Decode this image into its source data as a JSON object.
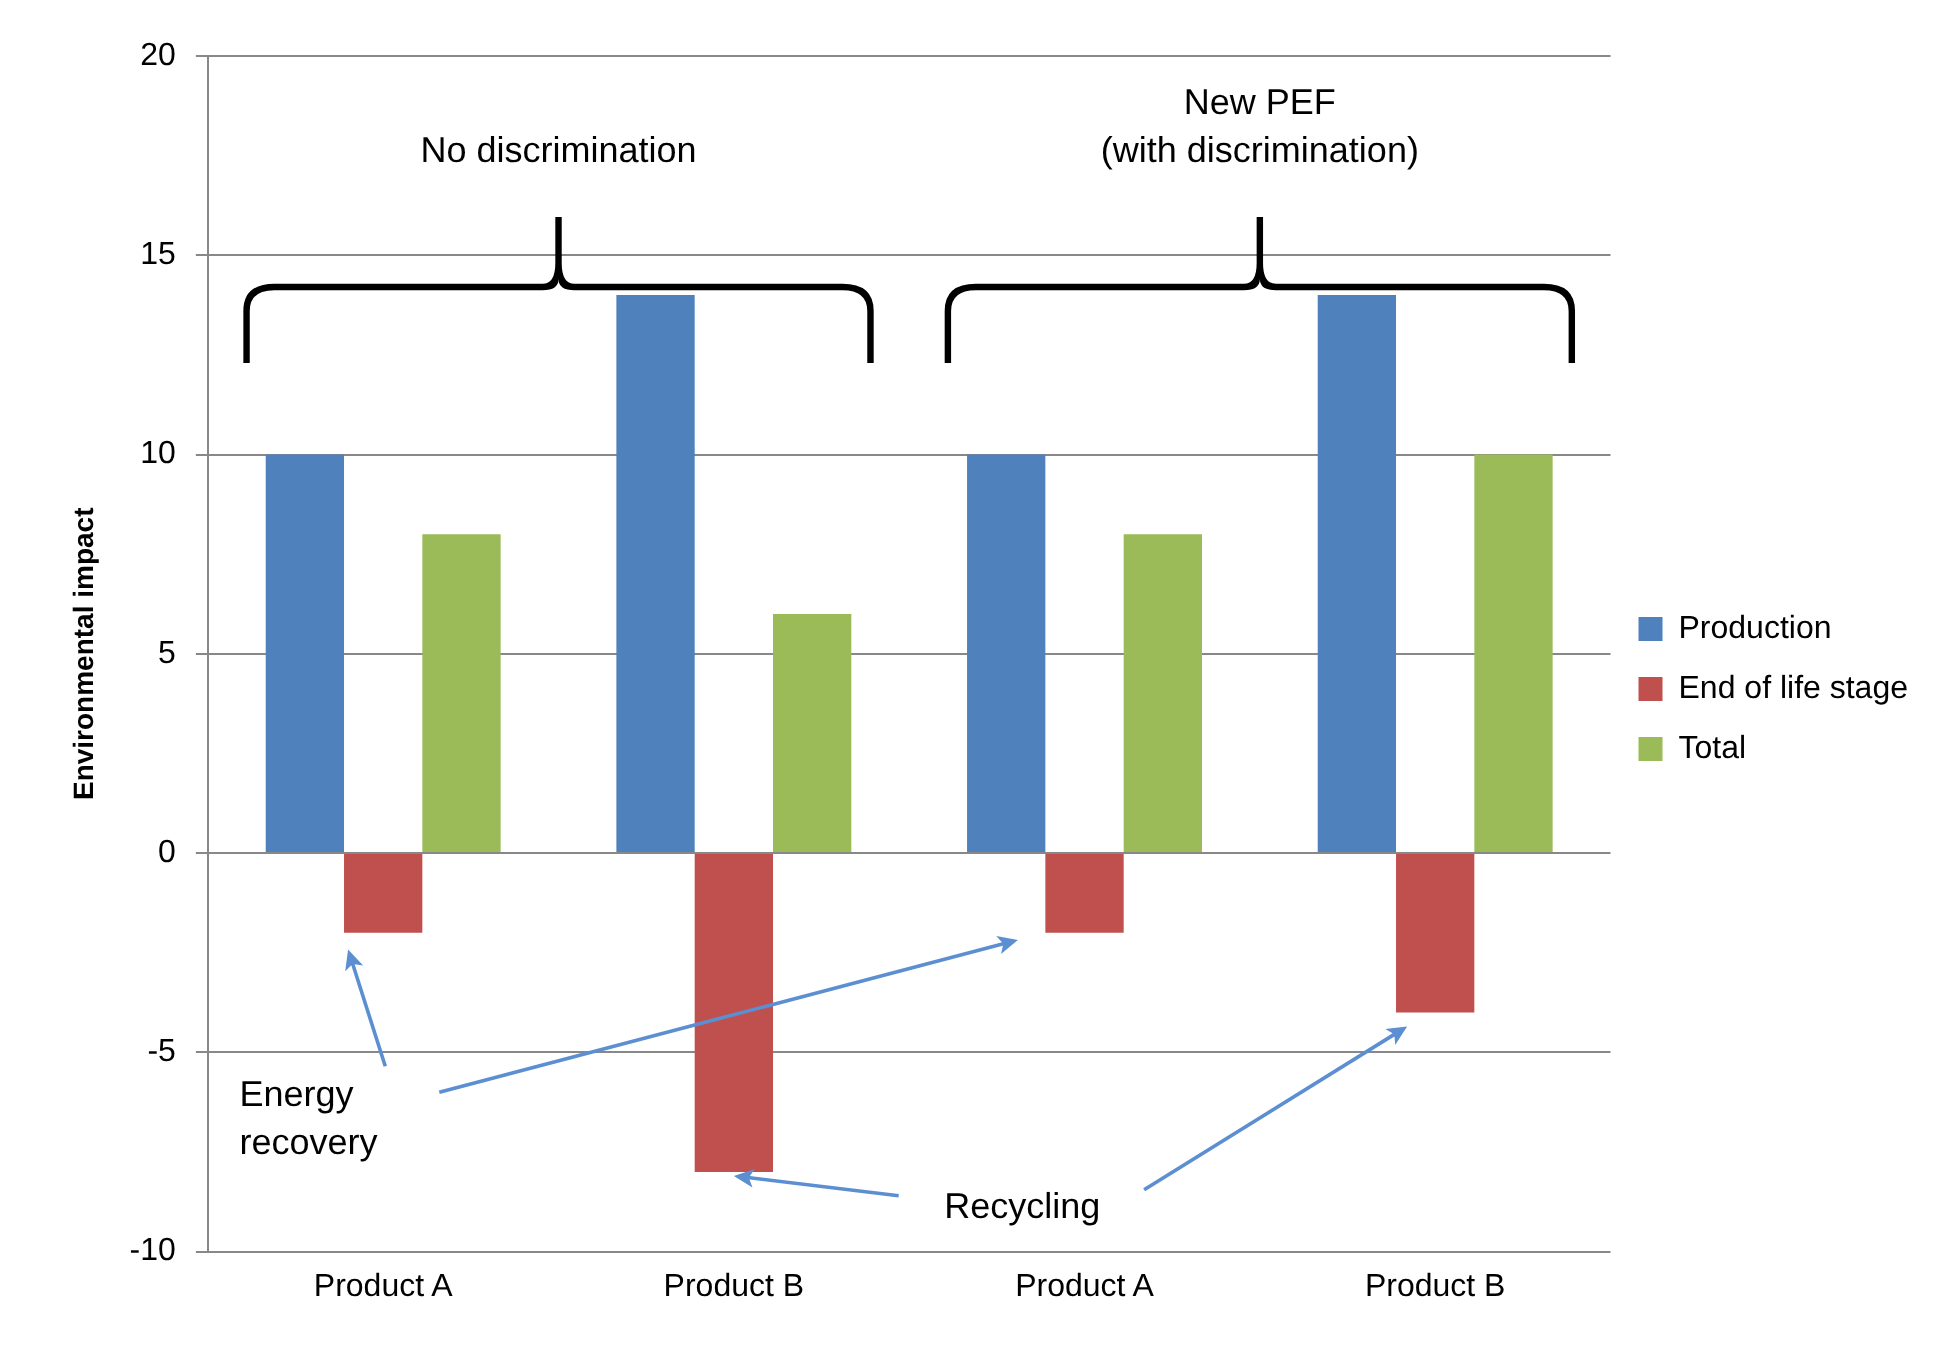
{
  "chart_data": {
    "type": "bar",
    "ylabel": "Environmental impact",
    "categories": [
      "Product A",
      "Product B",
      "Product A",
      "Product B"
    ],
    "series": [
      {
        "name": "Production",
        "color": "#4f81bd",
        "values": [
          10,
          14,
          10,
          14
        ]
      },
      {
        "name": "End of life stage",
        "color": "#c0504d",
        "values": [
          -2,
          -8,
          -2,
          -4
        ]
      },
      {
        "name": "Total",
        "color": "#9bbb59",
        "values": [
          8,
          6,
          8,
          10
        ]
      }
    ],
    "ylim": [
      -10,
      20
    ],
    "yticks": [
      -10,
      -5,
      0,
      5,
      10,
      15,
      20
    ],
    "grid": "y",
    "legend": "right",
    "annotations": [
      "No discrimination",
      "New PEF\n(with discrimination)",
      "Energy\nrecovery",
      "Recycling"
    ]
  }
}
